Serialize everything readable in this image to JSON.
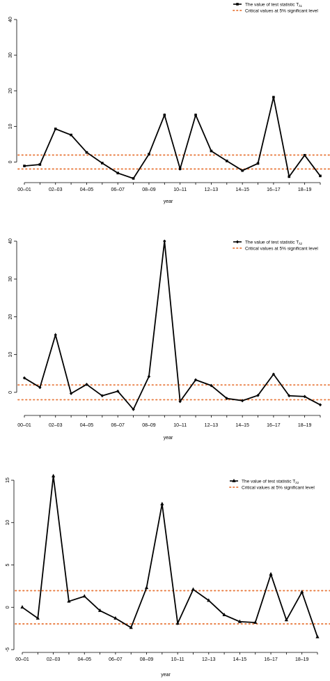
{
  "colors": {
    "series": "#000000",
    "critical": "#E8773A",
    "background": "#ffffff"
  },
  "chart_data": [
    {
      "type": "line",
      "marker": "square",
      "x": [
        "00-01",
        "01-02",
        "02-03",
        "03-04",
        "04-05",
        "05-06",
        "06-07",
        "07-08",
        "08-09",
        "09-10",
        "10-11",
        "11-12",
        "12-13",
        "13-14",
        "14-15",
        "15-16",
        "16-17",
        "17-18",
        "18-19",
        "19-20"
      ],
      "tick_labels": [
        "00–01",
        "02–03",
        "04–05",
        "06–07",
        "08–09",
        "10–11",
        "12–13",
        "14–15",
        "16–17",
        "18–19"
      ],
      "series": [
        {
          "name": "The value of test statistic T",
          "subscript": "λ1",
          "values": [
            -1.1,
            -0.7,
            9.3,
            7.6,
            2.7,
            -0.3,
            -3.1,
            -4.6,
            2.2,
            13.2,
            -1.9,
            13.2,
            3.1,
            0.3,
            -2.4,
            -0.4,
            18.2,
            -4.1,
            1.9,
            -3.9
          ]
        }
      ],
      "critical": {
        "name": "Critical values at 5% significant level",
        "values": [
          -1.96,
          1.96
        ]
      },
      "xlabel": "year",
      "ylabel": "",
      "ylim": [
        -5,
        40
      ],
      "yticks": [
        0,
        10,
        20,
        30,
        40
      ],
      "legend": "top-right",
      "grid": false
    },
    {
      "type": "line",
      "marker": "diamond",
      "x": [
        "00-01",
        "01-02",
        "02-03",
        "03-04",
        "04-05",
        "05-06",
        "06-07",
        "07-08",
        "08-09",
        "09-10",
        "10-11",
        "11-12",
        "12-13",
        "13-14",
        "14-15",
        "15-16",
        "16-17",
        "17-18",
        "18-19",
        "19-20"
      ],
      "tick_labels": [
        "00–01",
        "02–03",
        "04–05",
        "06–07",
        "08–09",
        "10–11",
        "12–13",
        "14–15",
        "16–17",
        "18–19"
      ],
      "series": [
        {
          "name": "The value of test statistic T",
          "subscript": "λ2",
          "values": [
            3.8,
            1.3,
            15.2,
            -0.3,
            2.1,
            -0.9,
            0.3,
            -4.5,
            4.2,
            40.0,
            -2.4,
            3.3,
            1.8,
            -1.6,
            -2.2,
            -0.8,
            4.8,
            -0.9,
            -1.1,
            -3.3
          ]
        }
      ],
      "critical": {
        "name": "Critical values at 5% significant level",
        "values": [
          -1.96,
          1.96
        ]
      },
      "xlabel": "year",
      "ylabel": "",
      "ylim": [
        -5,
        40
      ],
      "yticks": [
        0,
        10,
        20,
        30,
        40
      ],
      "legend": "top-right",
      "grid": false
    },
    {
      "type": "line",
      "marker": "triangle",
      "x": [
        "00-01",
        "01-02",
        "02-03",
        "03-04",
        "04-05",
        "05-06",
        "06-07",
        "07-08",
        "08-09",
        "09-10",
        "10-11",
        "11-12",
        "12-13",
        "13-14",
        "14-15",
        "15-16",
        "16-17",
        "17-18",
        "18-19",
        "19-20"
      ],
      "tick_labels": [
        "00–01",
        "02–03",
        "04–05",
        "06–07",
        "08–09",
        "10–11",
        "12–13",
        "14–15",
        "16–17",
        "18–19"
      ],
      "series": [
        {
          "name": "The value of test statistic T",
          "subscript": "λ3",
          "values": [
            0.0,
            -1.3,
            15.5,
            0.7,
            1.3,
            -0.4,
            -1.3,
            -2.4,
            2.3,
            12.2,
            -1.9,
            2.1,
            0.8,
            -0.9,
            -1.7,
            -1.8,
            3.9,
            -1.5,
            1.8,
            -3.5
          ]
        }
      ],
      "critical": {
        "name": "Critical values at 5% significant level",
        "values": [
          -1.96,
          1.96
        ]
      },
      "xlabel": "year",
      "ylabel": "",
      "ylim": [
        -5,
        15
      ],
      "yticks": [
        -5,
        0,
        5,
        10,
        15
      ],
      "legend": "top-right",
      "grid": false
    }
  ]
}
